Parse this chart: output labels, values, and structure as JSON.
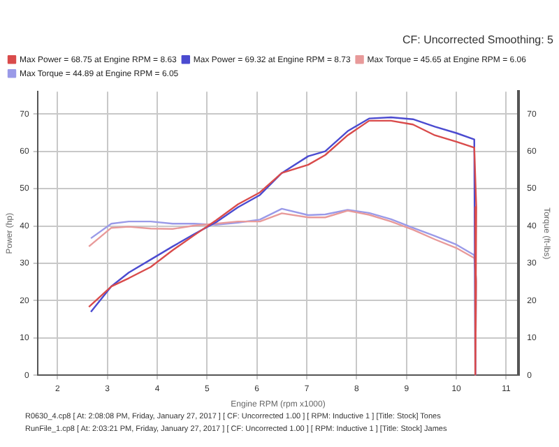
{
  "chart_data": {
    "type": "line",
    "subtitle": "CF: Uncorrected Smoothing: 5",
    "xlabel": "Engine RPM (rpm x1000)",
    "ylabel": "Power (hp)",
    "y2label": "Torque (ft-lbs)",
    "xlim": [
      1.6,
      11.25
    ],
    "xticks": [
      2,
      3,
      4,
      5,
      6,
      7,
      8,
      9,
      10,
      11
    ],
    "ylim": [
      0,
      76
    ],
    "yticks": [
      0,
      10,
      20,
      30,
      40,
      50,
      60,
      70
    ],
    "y2lim": [
      0,
      76
    ],
    "y2ticks": [
      0,
      10,
      20,
      30,
      40,
      50,
      60,
      70
    ],
    "grid": true,
    "legend": "top left",
    "marker": "none",
    "line_style": "solid",
    "series": [
      {
        "name": "Max Power = 68.75 at Engine RPM = 8.63",
        "color": "#d94b4b",
        "x": [
          2.63,
          3.08,
          3.43,
          3.87,
          4.31,
          4.74,
          5.18,
          5.62,
          6.06,
          6.5,
          7.03,
          7.37,
          7.82,
          8.25,
          8.69,
          9.13,
          9.57,
          10.0,
          10.36,
          10.4,
          10.38
        ],
        "values": [
          18.3,
          23.8,
          26.0,
          29.0,
          33.5,
          37.5,
          41.5,
          45.8,
          49.0,
          54.2,
          56.4,
          59.0,
          64.3,
          68.2,
          68.2,
          67.2,
          64.3,
          62.6,
          61.0,
          45,
          0
        ]
      },
      {
        "name": "Max Power = 69.32 at Engine RPM = 8.73",
        "color": "#4b4bd0",
        "x": [
          2.67,
          3.08,
          3.43,
          3.87,
          4.31,
          4.74,
          5.18,
          5.62,
          6.06,
          6.5,
          7.03,
          7.37,
          7.82,
          8.25,
          8.69,
          9.13,
          9.57,
          10.0,
          10.36,
          10.38
        ],
        "values": [
          17.0,
          23.8,
          27.5,
          31.0,
          34.5,
          37.8,
          41.0,
          45.0,
          48.3,
          54.2,
          58.7,
          60.0,
          65.4,
          68.8,
          69.1,
          68.6,
          66.6,
          64.9,
          63.2,
          0
        ]
      },
      {
        "name": "Max Torque = 45.65 at Engine RPM = 6.06",
        "color": "#e89a9a",
        "axis": "y2",
        "x": [
          2.63,
          3.08,
          3.43,
          3.87,
          4.31,
          4.74,
          5.18,
          5.62,
          6.06,
          6.5,
          7.03,
          7.37,
          7.82,
          8.25,
          8.69,
          9.13,
          9.57,
          10.0,
          10.36,
          10.4,
          10.38
        ],
        "values": [
          34.5,
          39.5,
          39.8,
          39.3,
          39.2,
          40.1,
          40.6,
          41.2,
          41.2,
          43.4,
          42.3,
          42.3,
          44.1,
          43.0,
          41.2,
          39.0,
          36.4,
          34.1,
          31.4,
          25,
          0
        ]
      },
      {
        "name": "Max Torque = 44.89 at Engine RPM = 6.05",
        "color": "#9a9ae8",
        "axis": "y2",
        "x": [
          2.67,
          3.08,
          3.43,
          3.87,
          4.31,
          4.74,
          5.18,
          5.62,
          6.06,
          6.5,
          7.03,
          7.37,
          7.82,
          8.25,
          8.69,
          9.13,
          9.57,
          10.0,
          10.36,
          10.4,
          10.38
        ],
        "values": [
          36.7,
          40.6,
          41.2,
          41.2,
          40.6,
          40.6,
          40.3,
          40.9,
          41.7,
          44.6,
          42.9,
          43.1,
          44.3,
          43.5,
          41.8,
          39.5,
          37.3,
          35.0,
          32.2,
          25,
          0
        ]
      }
    ],
    "annotations": [
      "R0630_4.cp8 [ At: 2:08:08 PM, Friday, January 27, 2017 ] [ CF: Uncorrected 1.00 ] [ RPM: Inductive 1 ] [Title: Stock] Tones",
      "RunFile_1.cp8 [ At: 2:03:21 PM, Friday, January 27, 2017 ] [ CF: Uncorrected 1.00 ] [ RPM: Inductive 1 ] [Title: Stock] James"
    ]
  }
}
